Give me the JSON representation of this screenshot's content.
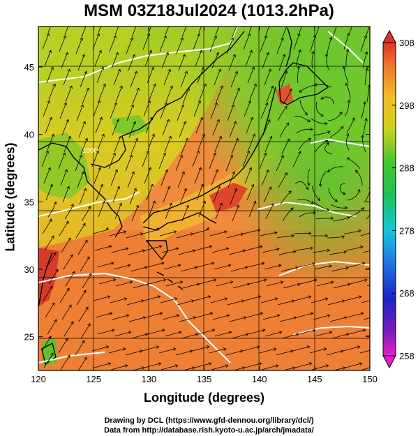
{
  "title": "MSM 03Z18Jul2024 (1013.2hPa)",
  "xlabel": "Longitude (degrees)",
  "ylabel": "Latitude  (degrees)",
  "credit_line1": "Drawing by DCL (https://www.gfd-dennou.org/library/dcl/)",
  "credit_line2": "Data from http://database.rish.kyoto-u.ac.jp/arch/jmadata/",
  "contour_label": "1000",
  "colors": {
    "ocean_warm": "#f08a3c",
    "ocean_south": "#ec7a38",
    "land_mid": "#d8cc22",
    "north_green": "#78c828",
    "coast": "#000000",
    "isobar": "#ffffff"
  },
  "chart_data": {
    "type": "heatmap",
    "variable": "temperature with surface wind streamlines",
    "xlim": [
      120,
      150
    ],
    "ylim": [
      22.5,
      48
    ],
    "xticks": [
      "120",
      "125",
      "130",
      "135",
      "140",
      "145",
      "150"
    ],
    "yticks": [
      "25",
      "30",
      "35",
      "40",
      "45"
    ],
    "colorbar": {
      "min": 258,
      "max": 308,
      "ticks": [
        "308",
        "298",
        "288",
        "278",
        "268",
        "258"
      ]
    }
  }
}
